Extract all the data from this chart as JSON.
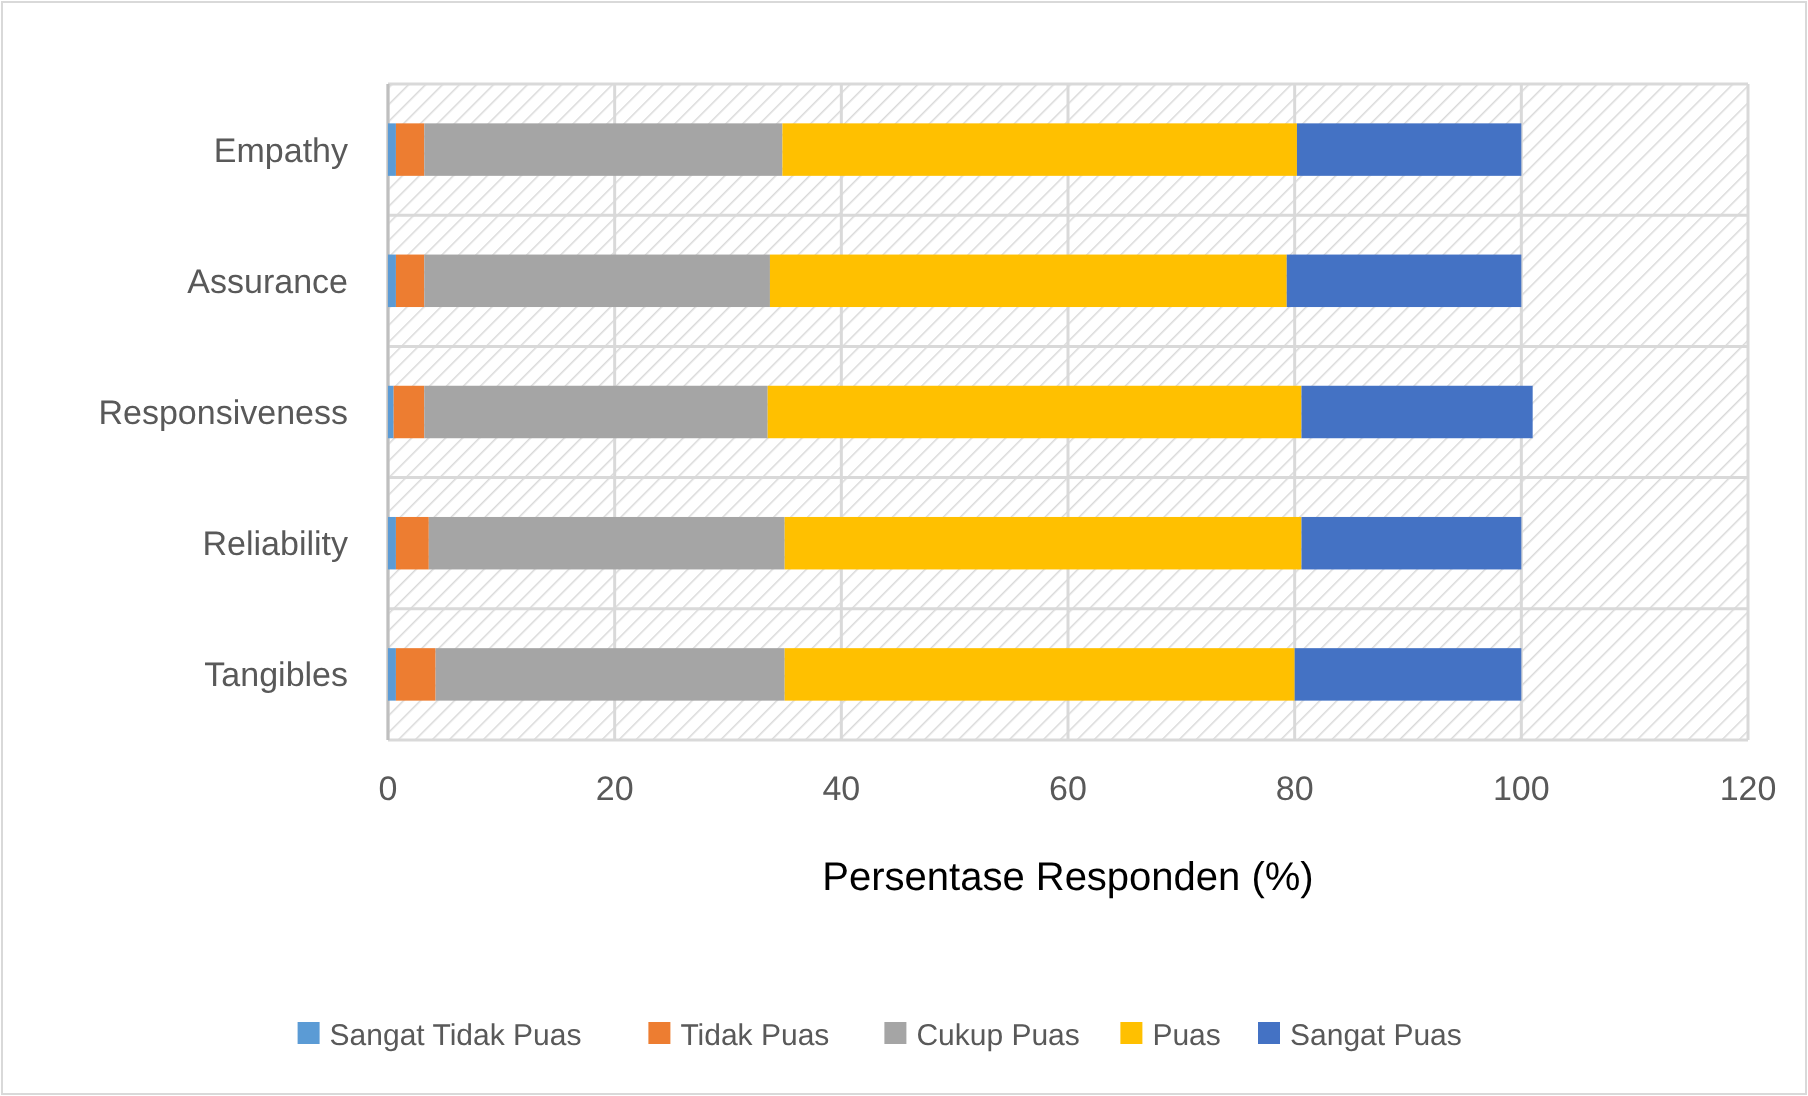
{
  "chart_data": {
    "type": "bar",
    "orientation": "horizontal",
    "stacked": true,
    "xlabel": "Persentase Responden (%)",
    "categories": [
      "Empathy",
      "Assurance",
      "Responsiveness",
      "Reliability",
      "Tangibles"
    ],
    "series": [
      {
        "name": "Sangat Tidak Puas",
        "color": "#5b9bd5",
        "values": [
          0.7,
          0.7,
          0.5,
          0.7,
          0.7
        ]
      },
      {
        "name": "Tidak Puas",
        "color": "#ed7d31",
        "values": [
          2.5,
          2.5,
          2.7,
          2.9,
          3.5
        ]
      },
      {
        "name": "Cukup Puas",
        "color": "#a5a5a5",
        "values": [
          31.6,
          30.5,
          30.3,
          31.4,
          30.8
        ]
      },
      {
        "name": "Puas",
        "color": "#ffc000",
        "values": [
          45.4,
          45.6,
          47.1,
          45.6,
          45.0
        ]
      },
      {
        "name": "Sangat Puas",
        "color": "#4472c4",
        "values": [
          19.8,
          20.7,
          20.4,
          19.4,
          20.0
        ]
      }
    ],
    "xlim": [
      0,
      120
    ],
    "xticks": [
      0,
      20,
      40,
      60,
      80,
      100,
      120
    ],
    "grid": true,
    "legend": "bottom"
  }
}
